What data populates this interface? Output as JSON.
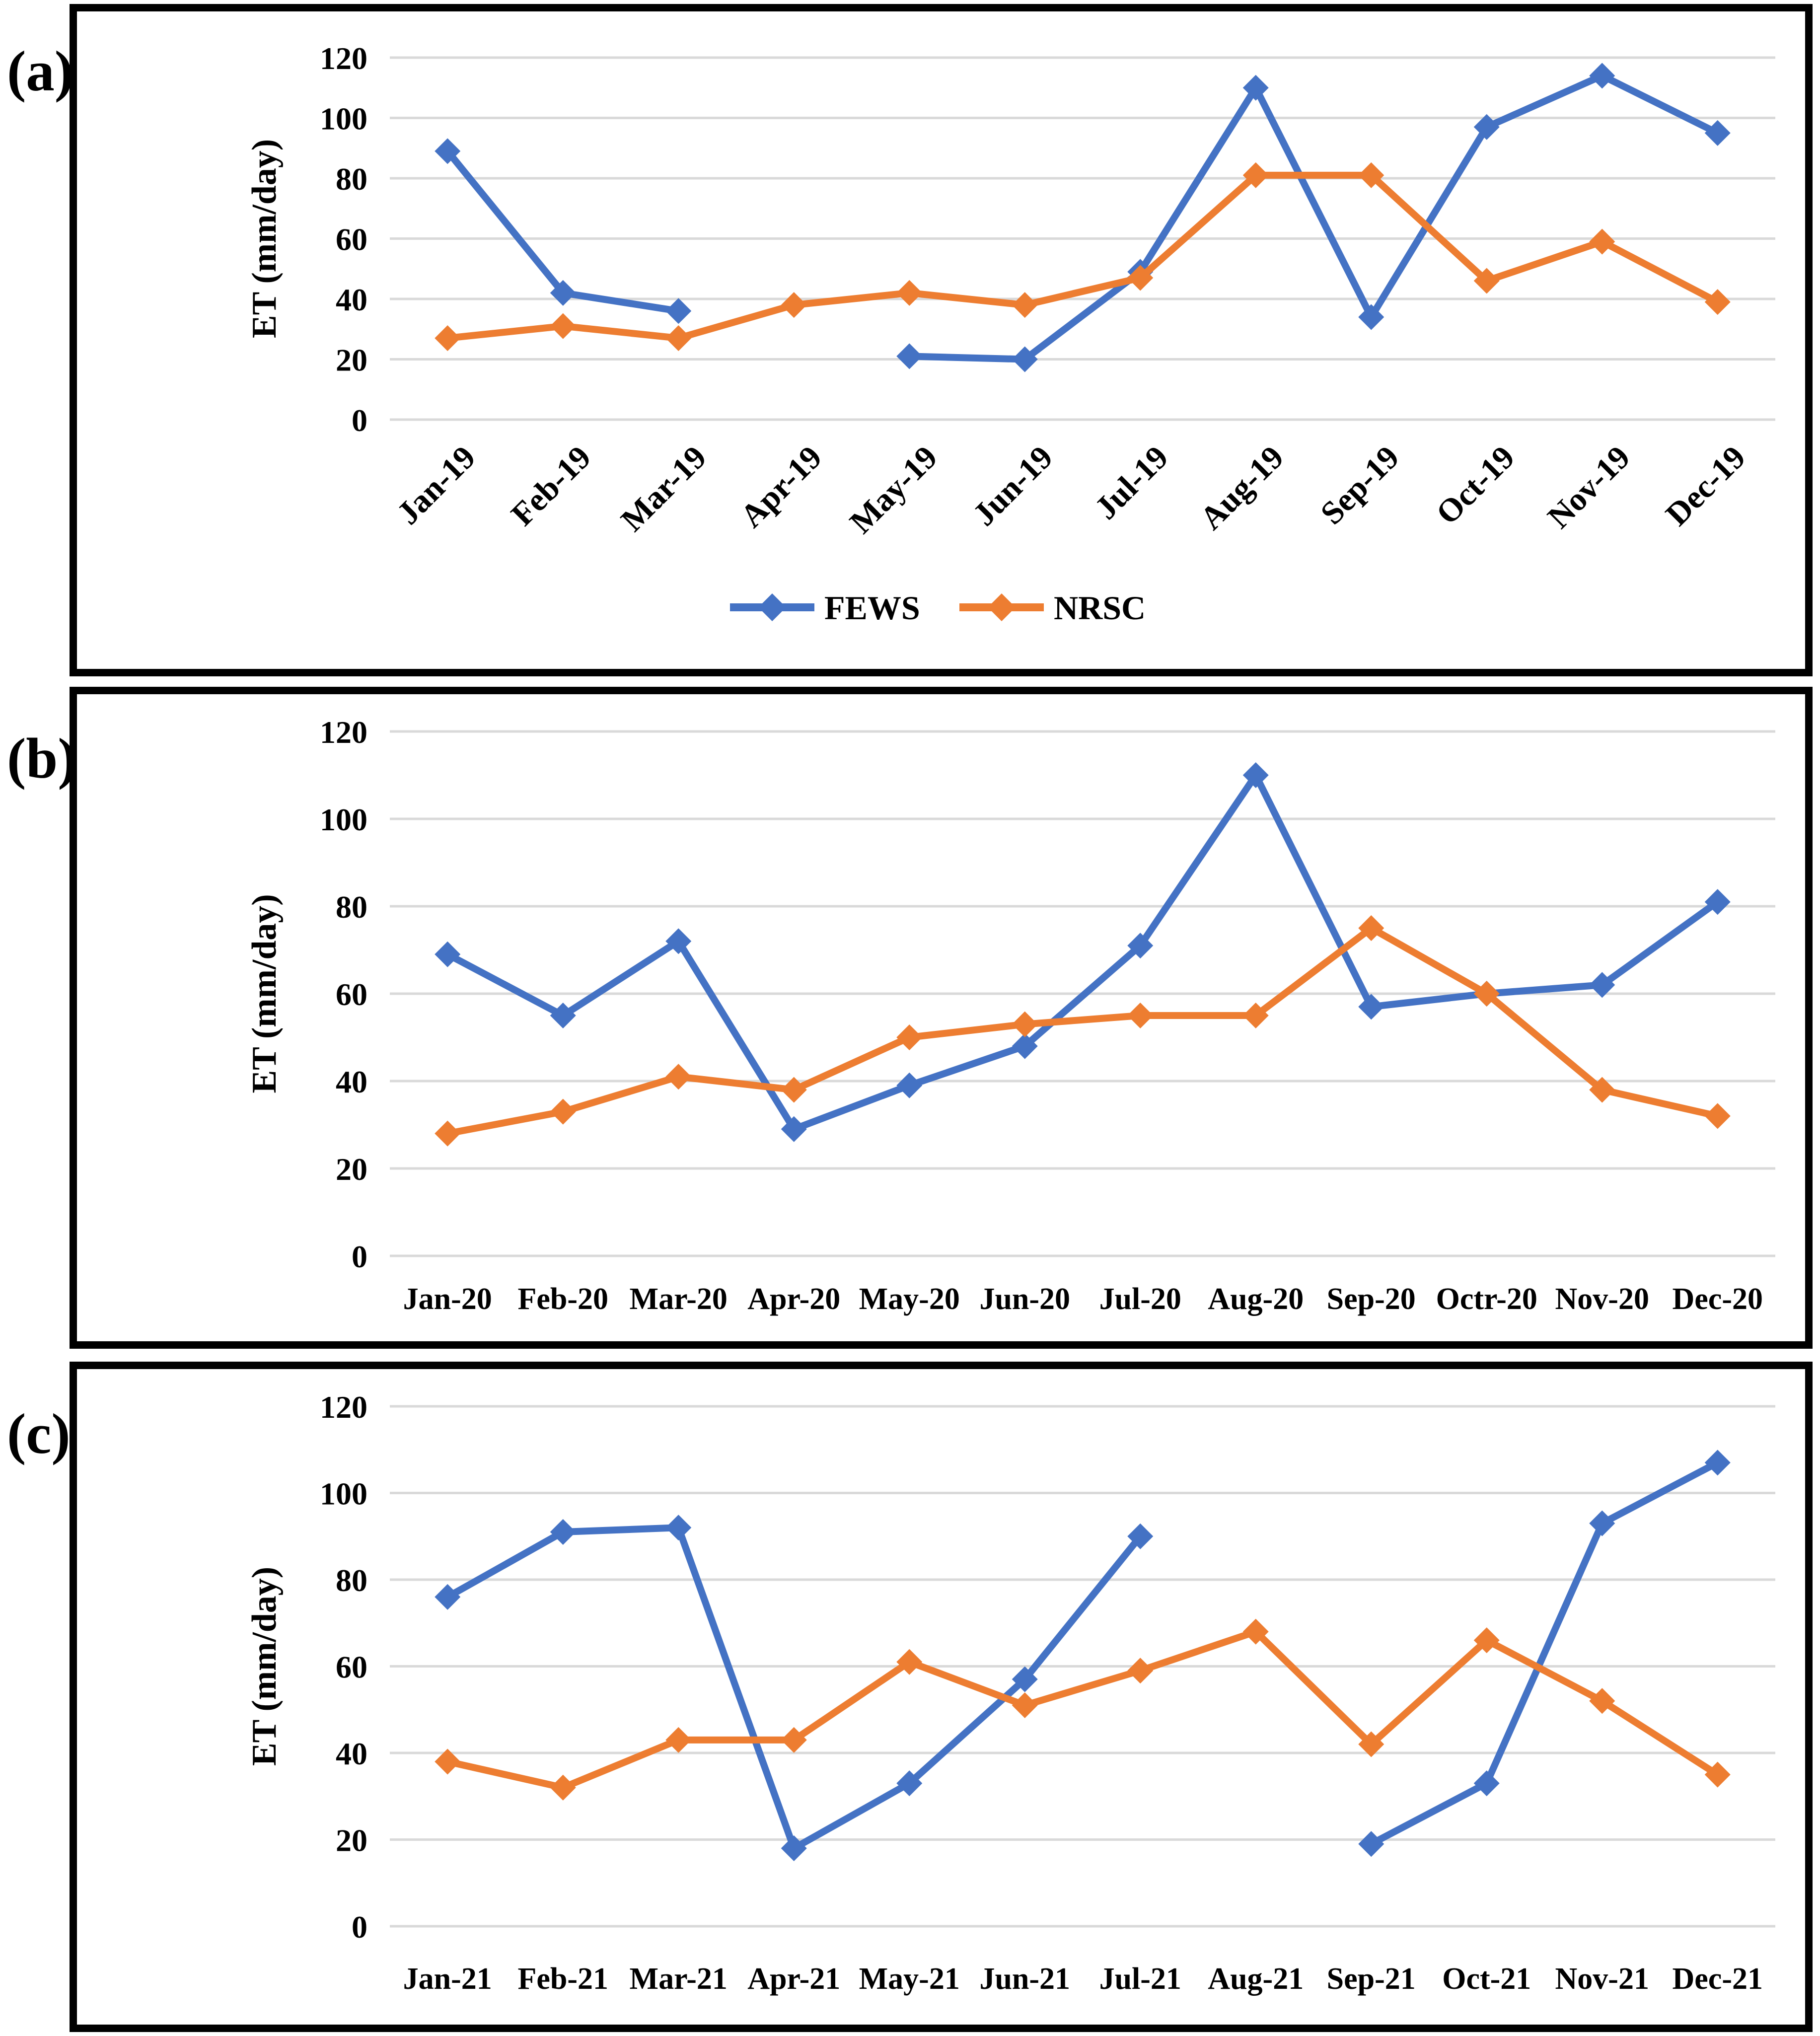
{
  "figure": {
    "background": "#ffffff",
    "frame_color": "#000000",
    "gridline_color": "#D9D9D9",
    "panel_labels": [
      "(a)",
      "(b)",
      "(c)"
    ]
  },
  "chart_data": [
    {
      "type": "line",
      "panel_label": "(a)",
      "title": "",
      "xlabel": "",
      "ylabel": "ET (mm/day)",
      "ylim": [
        0,
        120
      ],
      "yticks": [
        0,
        20,
        40,
        60,
        80,
        100,
        120
      ],
      "grid": true,
      "x_tick_rotation": 45,
      "categories": [
        "Jan-19",
        "Feb-19",
        "Mar-19",
        "Apr-19",
        "May-19",
        "Jun-19",
        "Jul-19",
        "Aug-19",
        "Sep-19",
        "Oct-19",
        "Nov-19",
        "Dec-19"
      ],
      "legend": {
        "visible": true,
        "position": "bottom"
      },
      "series": [
        {
          "name": "FEWS",
          "color": "#4472C4",
          "marker": "diamond",
          "values": [
            89,
            42,
            36,
            null,
            21,
            20,
            49,
            110,
            34,
            97,
            114,
            95
          ]
        },
        {
          "name": "NRSC",
          "color": "#ED7D31",
          "marker": "diamond",
          "values": [
            27,
            31,
            27,
            38,
            42,
            38,
            47,
            81,
            81,
            46,
            59,
            39
          ]
        }
      ]
    },
    {
      "type": "line",
      "panel_label": "(b)",
      "title": "",
      "xlabel": "",
      "ylabel": "ET (mm/day)",
      "ylim": [
        0,
        120
      ],
      "yticks": [
        0,
        20,
        40,
        60,
        80,
        100,
        120
      ],
      "grid": true,
      "x_tick_rotation": 0,
      "categories": [
        "Jan-20",
        "Feb-20",
        "Mar-20",
        "Apr-20",
        "May-20",
        "Jun-20",
        "Jul-20",
        "Aug-20",
        "Sep-20",
        "Octr-20",
        "Nov-20",
        "Dec-20"
      ],
      "legend": {
        "visible": false,
        "position": "none"
      },
      "series": [
        {
          "name": "FEWS",
          "color": "#4472C4",
          "marker": "diamond",
          "values": [
            69,
            55,
            72,
            29,
            39,
            48,
            71,
            110,
            57,
            60,
            62,
            81
          ]
        },
        {
          "name": "NRSC",
          "color": "#ED7D31",
          "marker": "diamond",
          "values": [
            28,
            33,
            41,
            38,
            50,
            53,
            55,
            55,
            75,
            60,
            38,
            32
          ]
        }
      ]
    },
    {
      "type": "line",
      "panel_label": "(c)",
      "title": "",
      "xlabel": "",
      "ylabel": "ET (mm/day)",
      "ylim": [
        0,
        120
      ],
      "yticks": [
        0,
        20,
        40,
        60,
        80,
        100,
        120
      ],
      "grid": true,
      "x_tick_rotation": 0,
      "categories": [
        "Jan-21",
        "Feb-21",
        "Mar-21",
        "Apr-21",
        "May-21",
        "Jun-21",
        "Jul-21",
        "Aug-21",
        "Sep-21",
        "Oct-21",
        "Nov-21",
        "Dec-21"
      ],
      "legend": {
        "visible": false,
        "position": "none"
      },
      "series": [
        {
          "name": "FEWS",
          "color": "#4472C4",
          "marker": "diamond",
          "values": [
            76,
            91,
            92,
            18,
            33,
            57,
            90,
            null,
            19,
            33,
            93,
            107
          ]
        },
        {
          "name": "NRSC",
          "color": "#ED7D31",
          "marker": "diamond",
          "values": [
            38,
            32,
            43,
            43,
            61,
            51,
            59,
            68,
            42,
            66,
            52,
            35
          ]
        }
      ]
    }
  ]
}
